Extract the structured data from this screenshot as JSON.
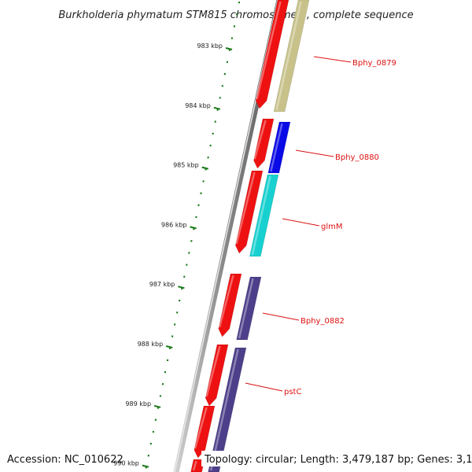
{
  "title": "Burkholderia phymatum STM815 chromosome 1, complete sequence",
  "footer": {
    "accession": "Accession: NC_010622",
    "summary": "Topology: circular; Length: 3,479,187 bp; Genes: 3,140"
  },
  "ticks": [
    {
      "label": "983 kbp",
      "kbp": 983
    },
    {
      "label": "984 kbp",
      "kbp": 984
    },
    {
      "label": "985 kbp",
      "kbp": 985
    },
    {
      "label": "986 kbp",
      "kbp": 986
    },
    {
      "label": "987 kbp",
      "kbp": 987
    },
    {
      "label": "988 kbp",
      "kbp": 988
    },
    {
      "label": "989 kbp",
      "kbp": 989
    },
    {
      "label": "990 kbp",
      "kbp": 990
    }
  ],
  "genes": [
    {
      "name": "Bphy_0879",
      "color": "#c8c28a"
    },
    {
      "name": "Bphy_0880",
      "color": "#0a0ae6"
    },
    {
      "name": "glmM",
      "color": "#18d0d0"
    },
    {
      "name": "Bphy_0882",
      "color": "#4e3f8a"
    },
    {
      "name": "pstC",
      "color": "#4e3f8a"
    }
  ],
  "colors": {
    "backbone": "#8a8a8a",
    "cds": "#ee1111",
    "tick": "#1a7a1a",
    "label": "#dd1111",
    "footer_bg": "#ffffff"
  }
}
